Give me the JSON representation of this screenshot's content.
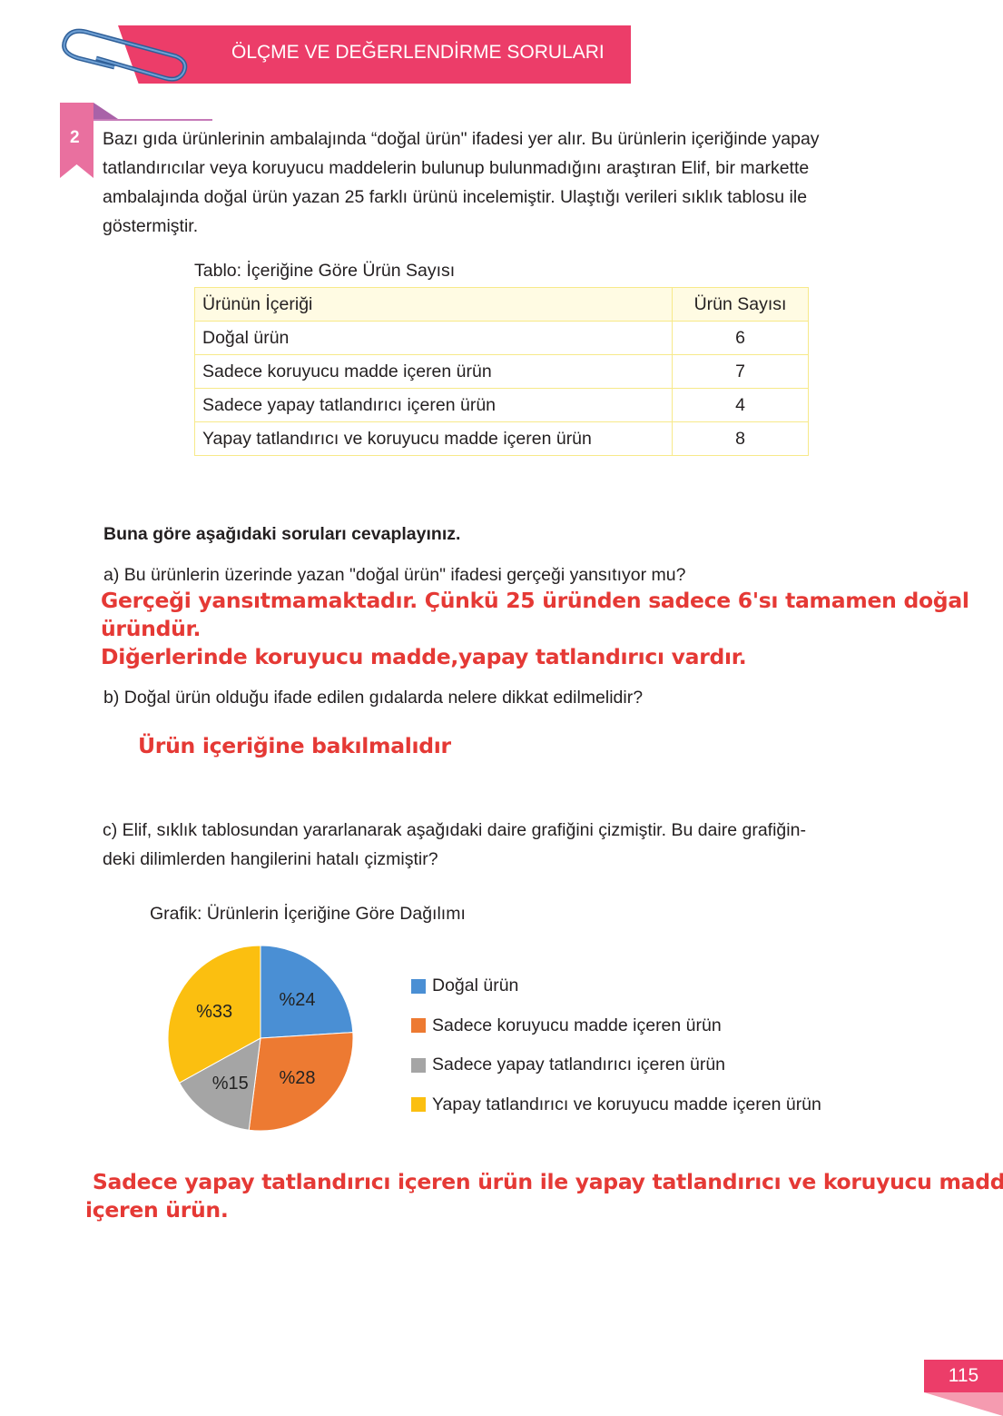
{
  "header": {
    "title": "ÖLÇME VE DEĞERLENDİRME SORULARI"
  },
  "question": {
    "number": "2",
    "text_lines": [
      "Bazı gıda ürünlerinin ambalajında “doğal ürün\" ifadesi yer alır. Bu ürünlerin içeriğinde yapay",
      "tatlandırıcılar veya koruyucu maddelerin bulunup bulunmadığını araştıran Elif, bir markette",
      "ambalajında doğal ürün yazan 25 farklı ürünü incelemiştir. Ulaştığı verileri sıklık tablosu ile",
      "göstermiştir."
    ]
  },
  "table": {
    "caption": "Tablo: İçeriğine Göre Ürün Sayısı",
    "headers": [
      "Ürünün İçeriği",
      "Ürün Sayısı"
    ],
    "rows": [
      [
        "Doğal ürün",
        "6"
      ],
      [
        "Sadece koruyucu madde içeren ürün",
        "7"
      ],
      [
        "Sadece yapay tatlandırıcı içeren ürün",
        "4"
      ],
      [
        "Yapay tatlandırıcı ve koruyucu madde içeren ürün",
        "8"
      ]
    ]
  },
  "instructions": "Buna göre aşağıdaki soruları cevaplayınız.",
  "part_a": {
    "question": "a) Bu ürünlerin üzerinde yazan \"doğal ürün\" ifadesi gerçeği yansıtıyor mu?",
    "answer_lines": [
      "Gerçeği yansıtmamaktadır. Çünkü 25 üründen sadece 6'sı tamamen doğal",
      "üründür.",
      "Diğerlerinde koruyucu madde,yapay tatlandırıcı vardır."
    ]
  },
  "part_b": {
    "question": "b) Doğal ürün olduğu ifade edilen gıdalarda nelere dikkat edilmelidir?",
    "answer": "Ürün içeriğine bakılmalıdır"
  },
  "part_c": {
    "question_lines": [
      "c) Elif, sıklık tablosundan yararlanarak aşağıdaki daire grafiğini çizmiştir. Bu daire grafiğin-",
      "deki dilimlerden hangilerini hatalı çizmiştir?"
    ],
    "answer_lines": [
      " Sadece yapay tatlandırıcı içeren ürün ile yapay tatlandırıcı ve koruyucu madde",
      "içeren ürün."
    ]
  },
  "chart_data": {
    "type": "pie",
    "title": "Grafik: Ürünlerin İçeriğine Göre Dağılımı",
    "categories": [
      "Doğal ürün",
      "Sadece koruyucu madde içeren ürün",
      "Sadece yapay tatlandırıcı içeren ürün",
      "Yapay tatlandırıcı ve koruyucu madde içeren ürün"
    ],
    "values": [
      24,
      28,
      15,
      33
    ],
    "labels": [
      "%24",
      "%28",
      "%15",
      "%33"
    ],
    "colors": [
      "#4a8fd4",
      "#ed7a32",
      "#a5a5a5",
      "#fbbf10"
    ],
    "legend": "right"
  },
  "page_number": "115"
}
